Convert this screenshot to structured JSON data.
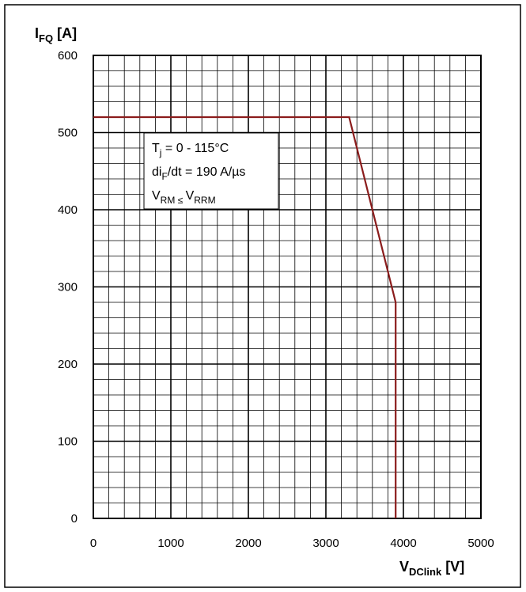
{
  "chart_data": {
    "type": "line",
    "title": "",
    "xlabel": {
      "main": "V",
      "sub": "DClink",
      "unit": " [V]"
    },
    "ylabel": {
      "main": "I",
      "sub": "FQ",
      "unit": " [A]"
    },
    "xlim": [
      0,
      5000
    ],
    "ylim": [
      0,
      600
    ],
    "x_ticks": [
      0,
      1000,
      2000,
      3000,
      4000,
      5000
    ],
    "y_ticks": [
      0,
      100,
      200,
      300,
      400,
      500,
      600
    ],
    "x_tick_labels": [
      "0",
      "1000",
      "2000",
      "3000",
      "4000",
      "5000"
    ],
    "y_tick_labels": [
      "0",
      "100",
      "200",
      "300",
      "400",
      "500",
      "600"
    ],
    "x_minor_step": 200,
    "y_minor_step": 20,
    "grid": true,
    "series": [
      {
        "color": "#8b1c1c",
        "x": [
          0,
          3300,
          3900,
          3900
        ],
        "y": [
          520,
          520,
          280,
          0
        ]
      }
    ],
    "annotation_lines": [
      {
        "parts": [
          {
            "t": "T"
          },
          {
            "t": "j",
            "sub": true
          },
          {
            "t": " = 0 - 115°C"
          }
        ]
      },
      {
        "parts": [
          {
            "t": "di"
          },
          {
            "t": "F",
            "sub": true
          },
          {
            "t": "/dt = 190 A/µs"
          }
        ]
      },
      {
        "parts": [
          {
            "t": "V"
          },
          {
            "t": "RM ≤ ",
            "sub": true
          },
          {
            "t": "V"
          },
          {
            "t": "RRM",
            "sub": true
          }
        ]
      }
    ]
  }
}
